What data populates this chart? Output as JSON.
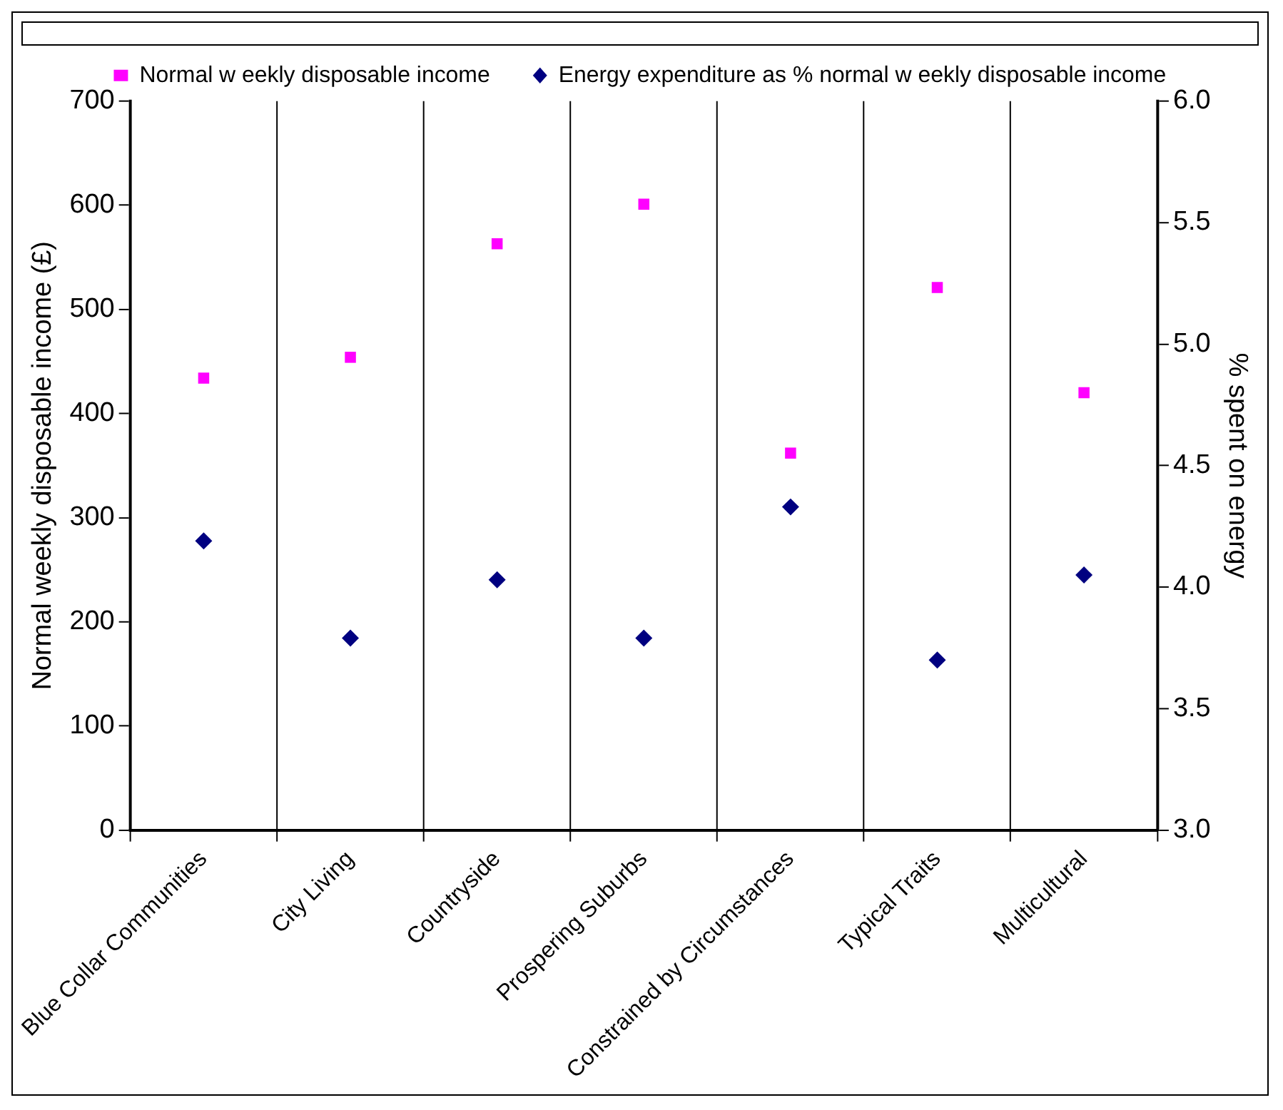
{
  "chart_data": {
    "type": "scatter",
    "categories": [
      "Blue Collar Communities",
      "City Living",
      "Countryside",
      "Prospering Suburbs",
      "Constrained by Circumstances",
      "Typical Traits",
      "Multicultural"
    ],
    "series": [
      {
        "name": "Normal w eekly disposable income",
        "color": "#ff00ff",
        "marker": "square",
        "values": [
          434,
          454,
          563,
          601,
          362,
          521,
          420
        ]
      },
      {
        "name": "Energy expenditure as % normal w eekly disposable income",
        "color": "#000080",
        "marker": "diamond",
        "axis": "y2",
        "values": [
          4.19,
          3.79,
          4.03,
          3.79,
          4.33,
          3.7,
          4.05
        ]
      }
    ],
    "ylabel": "Normal weekly disposable income (£)",
    "y2label": "% spent on energy",
    "ylim": [
      0,
      700
    ],
    "yticks": [
      0,
      100,
      200,
      300,
      400,
      500,
      600,
      700
    ],
    "y2lim": [
      3.0,
      6.0
    ],
    "y2ticks": [
      {
        "value": 3.0,
        "label": "3.0"
      },
      {
        "value": 3.5,
        "label": "3.5"
      },
      {
        "value": 4.0,
        "label": "4.0"
      },
      {
        "value": 4.5,
        "label": "4.5"
      },
      {
        "value": 5.0,
        "label": "5.0"
      },
      {
        "value": 5.5,
        "label": "5.5"
      },
      {
        "value": 6.0,
        "label": "6.0"
      }
    ],
    "grid": "x",
    "legend": "top"
  }
}
